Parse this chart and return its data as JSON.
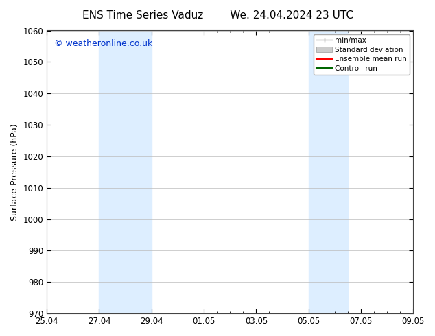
{
  "title_left": "ENS Time Series Vaduz",
  "title_right": "We. 24.04.2024 23 UTC",
  "ylabel": "Surface Pressure (hPa)",
  "ylim": [
    970,
    1060
  ],
  "yticks": [
    970,
    980,
    990,
    1000,
    1010,
    1020,
    1030,
    1040,
    1050,
    1060
  ],
  "xticks_positions": [
    0,
    2,
    4,
    6,
    8,
    10,
    12,
    14
  ],
  "xticks_labels": [
    "25.04",
    "27.04",
    "29.04",
    "01.05",
    "03.05",
    "05.05",
    "07.05",
    "09.05"
  ],
  "xlim": [
    0,
    14
  ],
  "shaded_regions": [
    {
      "x_start": 2.0,
      "x_end": 4.0,
      "color": "#ddeeff"
    },
    {
      "x_start": 10.0,
      "x_end": 11.5,
      "color": "#ddeeff"
    }
  ],
  "watermark": "© weatheronline.co.uk",
  "watermark_color": "#0033cc",
  "background_color": "#ffffff",
  "legend_items": [
    {
      "label": "min/max",
      "color": "#aaaaaa",
      "lw": 1.5
    },
    {
      "label": "Standard deviation",
      "color": "#cccccc",
      "lw": 6
    },
    {
      "label": "Ensemble mean run",
      "color": "#ff0000",
      "lw": 1.5
    },
    {
      "label": "Controll run",
      "color": "#006600",
      "lw": 1.5
    }
  ],
  "tick_fontsize": 8.5,
  "title_fontsize": 11,
  "ylabel_fontsize": 9,
  "grid_color": "#bbbbbb",
  "spine_color": "#444444"
}
